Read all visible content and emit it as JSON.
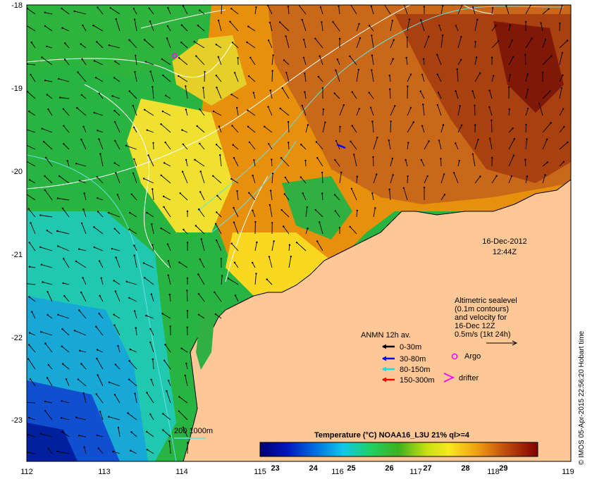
{
  "map": {
    "x_ticks": [
      "112",
      "113",
      "114",
      "115",
      "116",
      "117",
      "118",
      "119"
    ],
    "y_ticks": [
      "-18",
      "-19",
      "-20",
      "-21",
      "-22",
      "-23"
    ],
    "x_range": [
      112,
      119
    ],
    "y_range": [
      -23.5,
      -18
    ],
    "date": "16-Dec-2012",
    "time": "12:44Z",
    "sealevel_note": [
      "Altimetric sealevel",
      "(0.1m contours)",
      "and velocity for",
      "16-Dec 12Z",
      "0.5m/s (1kt 24h)"
    ],
    "legend": {
      "title": "ANMN 12h av.",
      "items": [
        {
          "label": "0-30m",
          "color": "#000000"
        },
        {
          "label": "30-80m",
          "color": "#0000ff"
        },
        {
          "label": "80-150m",
          "color": "#00e5e5"
        },
        {
          "label": "150-300m",
          "color": "#ff0000"
        }
      ]
    },
    "argo_label": "Argo",
    "drifter_label": "drifter",
    "bathy_label": "200  1000m",
    "colorbar": {
      "title": "Temperature (°C) NOAA16_L3U 21% ql>=4",
      "ticks": [
        "23",
        "24",
        "25",
        "26",
        "27",
        "28",
        "29"
      ],
      "range": [
        22.6,
        29.9
      ]
    },
    "credit": "© IMOS 05-Apr-2015 22:56:20 Hobart time",
    "colors": {
      "land": "#fdc796",
      "argo": "#ff00ff",
      "drifter": "#ff00ff",
      "contour": "#ffffff",
      "bathy": "#66e0e0"
    }
  }
}
